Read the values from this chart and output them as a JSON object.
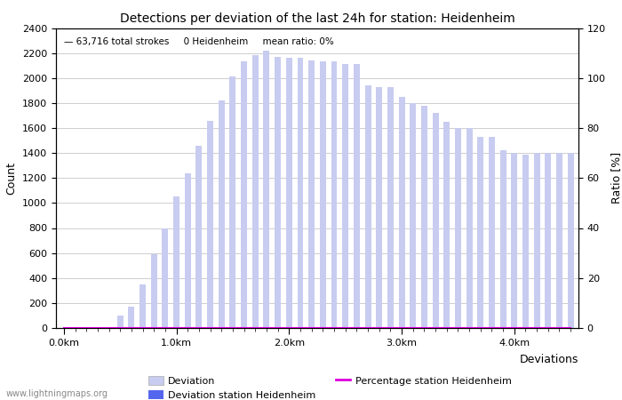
{
  "title": "Detections per deviation of the last 24h for station: Heidenheim",
  "annotation": "63,716 total strokes     0 Heidenheim     mean ratio: 0%",
  "ylabel_left": "Count",
  "ylabel_right": "Ratio [%]",
  "xlabel": "Deviations",
  "ylim_left": [
    0,
    2400
  ],
  "ylim_right": [
    0,
    120
  ],
  "ytick_left": [
    0,
    200,
    400,
    600,
    800,
    1000,
    1200,
    1400,
    1600,
    1800,
    2000,
    2200,
    2400
  ],
  "ytick_right": [
    0,
    20,
    40,
    60,
    80,
    100,
    120
  ],
  "bar_values": [
    0,
    0,
    0,
    0,
    0,
    100,
    170,
    350,
    590,
    800,
    1050,
    1240,
    1460,
    1660,
    1820,
    2010,
    2130,
    2180,
    2220,
    2170,
    2160,
    2160,
    2140,
    2130,
    2130,
    2110,
    2110,
    1940,
    1930,
    1930,
    1850,
    1800,
    1780,
    1720,
    1650,
    1600,
    1600,
    1530,
    1530,
    1420,
    1400,
    1390,
    1400,
    1400,
    1400,
    1400
  ],
  "station_bar_values": [
    0,
    0,
    0,
    0,
    0,
    0,
    0,
    0,
    0,
    0,
    0,
    0,
    0,
    0,
    0,
    0,
    0,
    0,
    0,
    0,
    0,
    0,
    0,
    0,
    0,
    0,
    0,
    0,
    0,
    0,
    0,
    0,
    0,
    0,
    0,
    0,
    0,
    0,
    0,
    0,
    0,
    0,
    0,
    0,
    0,
    0
  ],
  "percentage_values": [
    0,
    0,
    0,
    0,
    0,
    0,
    0,
    0,
    0,
    0,
    0,
    0,
    0,
    0,
    0,
    0,
    0,
    0,
    0,
    0,
    0,
    0,
    0,
    0,
    0,
    0,
    0,
    0,
    0,
    0,
    0,
    0,
    0,
    0,
    0,
    0,
    0,
    0,
    0,
    0,
    0,
    0,
    0,
    0,
    0,
    0
  ],
  "bar_color": "#c8ccf0",
  "station_bar_color": "#5566ee",
  "percentage_color": "#dd00dd",
  "background_color": "#ffffff",
  "grid_color": "#bbbbbb",
  "watermark": "www.lightningmaps.org",
  "legend_deviation": "Deviation",
  "legend_station": "Deviation station Heidenheim",
  "legend_percentage": "Percentage station Heidenheim",
  "n_bars": 46,
  "xtick_km_positions": [
    0,
    10,
    20,
    30,
    40
  ],
  "xtick_km_labels": [
    "0.0km",
    "1.0km",
    "2.0km",
    "3.0km",
    "4.0km"
  ]
}
